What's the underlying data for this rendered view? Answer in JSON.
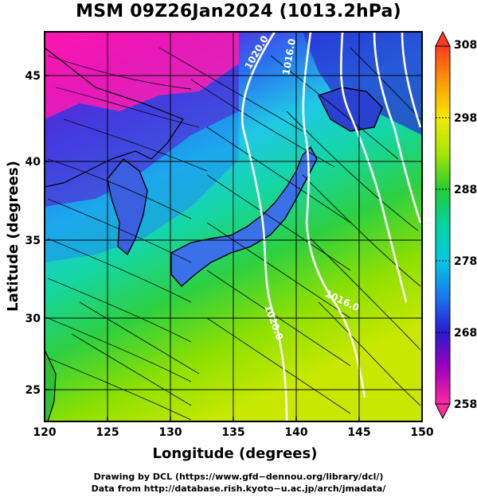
{
  "title": "MSM 09Z26Jan2024 (1013.2hPa)",
  "map": {
    "xlabel": "Longitude (degrees)",
    "ylabel": "Latitude  (degrees)",
    "lon_range": [
      120,
      150
    ],
    "lat_range": [
      22.5,
      48
    ],
    "x_ticks": [
      "120",
      "125",
      "130",
      "135",
      "140",
      "145",
      "150"
    ],
    "y_ticks": [
      "25",
      "30",
      "35",
      "40",
      "45"
    ],
    "x_tick_values": [
      120,
      125,
      130,
      135,
      140,
      145,
      150
    ],
    "y_tick_values": [
      25,
      30,
      35,
      40,
      45
    ],
    "grid": true,
    "isobar_labels": [
      "1020.0",
      "1016.0",
      "1020.0",
      "1016.0"
    ]
  },
  "colorbar": {
    "ticks": [
      "308",
      "298",
      "288",
      "278",
      "268",
      "258"
    ],
    "tick_values": [
      308,
      298,
      288,
      278,
      268,
      258
    ],
    "range": [
      258,
      308
    ],
    "colors": [
      "#ff3b1f",
      "#ff9a00",
      "#f2ea00",
      "#a8e600",
      "#22cc33",
      "#00d4a0",
      "#00c8e0",
      "#1a78f0",
      "#2a1ad0",
      "#a000c0",
      "#ff2aa0"
    ]
  },
  "footer": {
    "line1": "Drawing by DCL (https://www.gfd−dennou.org/library/dcl/)",
    "line2": "Data from http://database.rish.kyoto−u.ac.jp/arch/jmadata/"
  }
}
